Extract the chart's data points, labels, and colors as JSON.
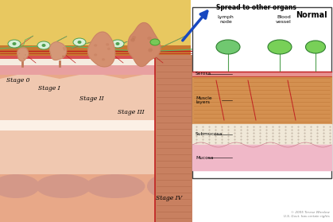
{
  "bg_color": "#ffffff",
  "colon_outer_color": "#e8a888",
  "colon_mid_color": "#f0c0a8",
  "colon_inner_color": "#f5d5c0",
  "wall_yellow_color": "#e8c870",
  "wall_orange_color": "#d09040",
  "wall_pink_color": "#e89898",
  "wall_white_color": "#f8f0e8",
  "tumor_base": "#d49070",
  "tumor_dark": "#c07858",
  "lymph_green": "#60b860",
  "vessel_green": "#4aa84a",
  "arrow_blue": "#1848c0",
  "arrow_text": "Spread to other organs",
  "inset_title": "Normal",
  "stages": [
    "Stage 0",
    "Stage I",
    "Stage II",
    "Stage III",
    "Stage IV"
  ],
  "inset_serosa_color": "#f0c8c8",
  "inset_muscle_color": "#d4904a",
  "inset_submucosa_color": "#f0e8d8",
  "inset_mucosa_color": "#f0c8d8",
  "copyright": "© 2005 Terese Winslow\nU.S. Govt. has certain rights"
}
